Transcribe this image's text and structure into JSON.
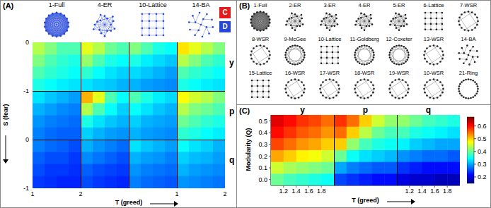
{
  "panel_labels": [
    "(A)",
    "(B)",
    "(C)"
  ],
  "chart_data": [
    {
      "type": "heatmap",
      "xlabel": "T (greed)",
      "ylabel": "S (fear)",
      "xlim": [
        1,
        2
      ],
      "ylim": [
        -1,
        0
      ],
      "xticks": [
        1,
        2
      ],
      "yticks": [
        -1,
        0
      ],
      "zlim": [
        0,
        1
      ],
      "x": [
        1.125,
        1.375,
        1.625,
        1.875
      ],
      "y": [
        -0.125,
        -0.375,
        -0.625,
        -0.875
      ],
      "color_legend": [
        {
          "label": "C",
          "color": "#e41a1c"
        },
        {
          "label": "D",
          "color": "#2747d9"
        }
      ],
      "networks": [
        "1-Full",
        "4-ER",
        "10-Lattice",
        "14-BA"
      ],
      "blocks": [
        {
          "name": "y",
          "cells": [
            [
              [
                0.55,
                0.5,
                0.45,
                0.45
              ],
              [
                0.5,
                0.45,
                0.42,
                0.4
              ],
              [
                0.45,
                0.42,
                0.4,
                0.38
              ],
              [
                0.4,
                0.38,
                0.36,
                0.35
              ]
            ],
            [
              [
                0.6,
                0.55,
                0.48,
                0.45
              ],
              [
                0.52,
                0.45,
                0.4,
                0.38
              ],
              [
                0.42,
                0.38,
                0.35,
                0.33
              ],
              [
                0.35,
                0.33,
                0.32,
                0.3
              ]
            ],
            [
              [
                0.5,
                0.45,
                0.4,
                0.38
              ],
              [
                0.4,
                0.36,
                0.34,
                0.32
              ],
              [
                0.34,
                0.32,
                0.3,
                0.28
              ],
              [
                0.3,
                0.28,
                0.27,
                0.26
              ]
            ],
            [
              [
                0.65,
                0.6,
                0.55,
                0.5
              ],
              [
                0.55,
                0.5,
                0.45,
                0.42
              ],
              [
                0.45,
                0.42,
                0.4,
                0.38
              ],
              [
                0.4,
                0.38,
                0.36,
                0.35
              ]
            ]
          ]
        },
        {
          "name": "p",
          "cells": [
            [
              [
                0.35,
                0.32,
                0.3,
                0.28
              ],
              [
                0.3,
                0.28,
                0.26,
                0.25
              ],
              [
                0.27,
                0.25,
                0.24,
                0.23
              ],
              [
                0.25,
                0.23,
                0.22,
                0.22
              ]
            ],
            [
              [
                0.7,
                0.6,
                0.45,
                0.38
              ],
              [
                0.55,
                0.45,
                0.38,
                0.33
              ],
              [
                0.4,
                0.35,
                0.32,
                0.3
              ],
              [
                0.33,
                0.3,
                0.28,
                0.27
              ]
            ],
            [
              [
                0.45,
                0.4,
                0.36,
                0.34
              ],
              [
                0.38,
                0.35,
                0.32,
                0.3
              ],
              [
                0.33,
                0.3,
                0.29,
                0.28
              ],
              [
                0.3,
                0.28,
                0.27,
                0.26
              ]
            ],
            [
              [
                0.62,
                0.58,
                0.55,
                0.5
              ],
              [
                0.55,
                0.5,
                0.48,
                0.45
              ],
              [
                0.48,
                0.45,
                0.42,
                0.4
              ],
              [
                0.42,
                0.4,
                0.38,
                0.36
              ]
            ]
          ]
        },
        {
          "name": "q",
          "cells": [
            [
              [
                0.25,
                0.23,
                0.22,
                0.2
              ],
              [
                0.22,
                0.2,
                0.2,
                0.18
              ],
              [
                0.2,
                0.18,
                0.18,
                0.17
              ],
              [
                0.18,
                0.17,
                0.16,
                0.16
              ]
            ],
            [
              [
                0.3,
                0.27,
                0.25,
                0.23
              ],
              [
                0.26,
                0.24,
                0.22,
                0.2
              ],
              [
                0.22,
                0.2,
                0.19,
                0.18
              ],
              [
                0.2,
                0.18,
                0.17,
                0.16
              ]
            ],
            [
              [
                0.35,
                0.32,
                0.3,
                0.28
              ],
              [
                0.3,
                0.28,
                0.27,
                0.25
              ],
              [
                0.27,
                0.25,
                0.24,
                0.23
              ],
              [
                0.25,
                0.23,
                0.22,
                0.21
              ]
            ],
            [
              [
                0.38,
                0.35,
                0.33,
                0.3
              ],
              [
                0.33,
                0.31,
                0.3,
                0.28
              ],
              [
                0.3,
                0.28,
                0.27,
                0.26
              ],
              [
                0.27,
                0.26,
                0.25,
                0.24
              ]
            ]
          ]
        }
      ]
    },
    {
      "type": "heatmap",
      "xlabel": "T (greed)",
      "ylabel": "Modularity (Q)",
      "xlim": [
        1,
        2
      ],
      "ylim": [
        -0.05,
        0.55
      ],
      "yticks": [
        {
          "value": 0,
          "label": "0.0"
        },
        0.1,
        0.2,
        0.3,
        0.4,
        0.5
      ],
      "x": [
        1.1,
        1.3,
        1.5,
        1.7,
        1.9
      ],
      "y": [
        0.5,
        0.4,
        0.3,
        0.2,
        0.1,
        0
      ],
      "colorbar": {
        "range": [
          0.15,
          0.67
        ],
        "ticks": [
          0.2,
          0.3,
          0.4,
          0.5,
          0.6
        ]
      },
      "blocks": [
        {
          "name": "y",
          "xticks": [
            1.2,
            1.4,
            1.6,
            1.8
          ],
          "cells": [
            [
              0.62,
              0.6,
              0.58,
              0.57,
              0.55
            ],
            [
              0.6,
              0.58,
              0.56,
              0.55,
              0.53
            ],
            [
              0.57,
              0.55,
              0.53,
              0.52,
              0.5
            ],
            [
              0.52,
              0.5,
              0.48,
              0.47,
              0.45
            ],
            [
              0.45,
              0.43,
              0.42,
              0.41,
              0.4
            ],
            [
              0.4,
              0.38,
              0.37,
              0.36,
              0.35
            ]
          ]
        },
        {
          "name": "p",
          "xticks": [],
          "cells": [
            [
              0.58,
              0.55,
              0.5,
              0.45,
              0.42
            ],
            [
              0.55,
              0.5,
              0.44,
              0.4,
              0.38
            ],
            [
              0.5,
              0.42,
              0.38,
              0.36,
              0.35
            ],
            [
              0.4,
              0.35,
              0.33,
              0.32,
              0.31
            ],
            [
              0.3,
              0.28,
              0.27,
              0.26,
              0.26
            ],
            [
              0.25,
              0.24,
              0.23,
              0.22,
              0.22
            ]
          ]
        },
        {
          "name": "q",
          "xticks": [
            1.2,
            1.4,
            1.6,
            1.8
          ],
          "cells": [
            [
              0.42,
              0.4,
              0.38,
              0.37,
              0.36
            ],
            [
              0.38,
              0.36,
              0.35,
              0.34,
              0.33
            ],
            [
              0.34,
              0.32,
              0.31,
              0.3,
              0.3
            ],
            [
              0.29,
              0.28,
              0.27,
              0.27,
              0.26
            ],
            [
              0.24,
              0.23,
              0.22,
              0.22,
              0.22
            ],
            [
              0.2,
              0.19,
              0.19,
              0.18,
              0.18
            ]
          ]
        }
      ]
    }
  ],
  "networks_B": [
    "1-Full",
    "2-ER",
    "3-ER",
    "4-ER",
    "5-ER",
    "6-Lattice",
    "7-WSR",
    "8-WSR",
    "9-McGee",
    "10-Lattice",
    "11-Goldberg",
    "12-Coxeter",
    "13-WSR",
    "14-BA",
    "15-Lattice",
    "16-WSR",
    "17-WSR",
    "18-WSR",
    "19-WSR",
    "10-WSR",
    "21-Ring"
  ]
}
